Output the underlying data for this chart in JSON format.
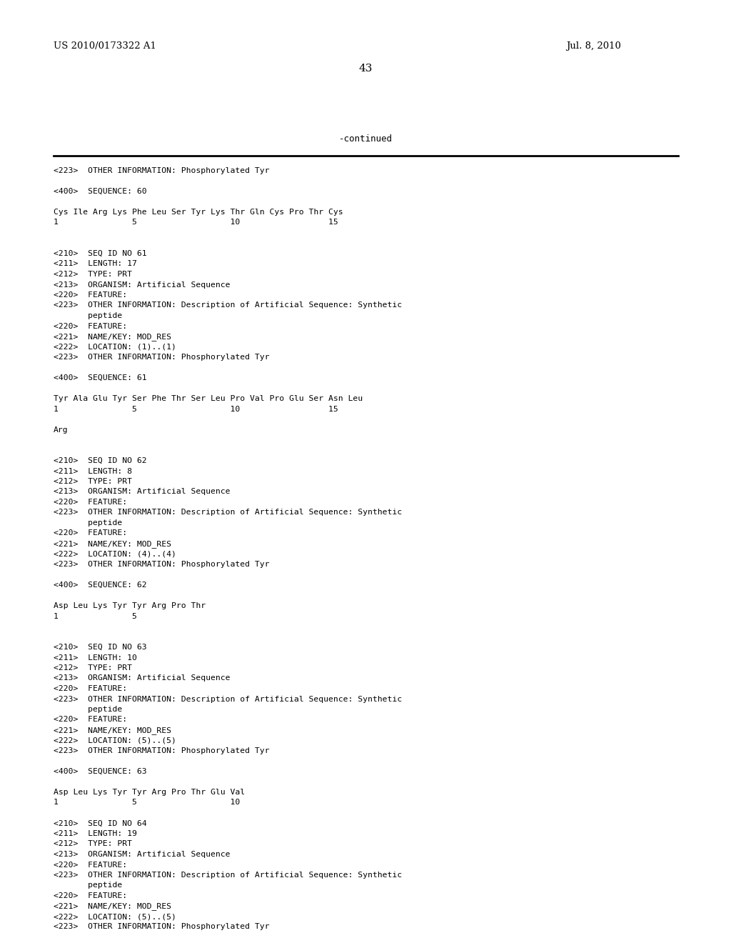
{
  "background_color": "#ffffff",
  "header_left": "US 2010/0173322 A1",
  "header_right": "Jul. 8, 2010",
  "page_number": "43",
  "continued_text": "-continued",
  "figsize": [
    10.24,
    13.2
  ],
  "dpi": 100,
  "content_lines": [
    "<223>  OTHER INFORMATION: Phosphorylated Tyr",
    "",
    "<400>  SEQUENCE: 60",
    "",
    "Cys Ile Arg Lys Phe Leu Ser Tyr Lys Thr Gln Cys Pro Thr Cys",
    "1               5                   10                  15",
    "",
    "",
    "<210>  SEQ ID NO 61",
    "<211>  LENGTH: 17",
    "<212>  TYPE: PRT",
    "<213>  ORGANISM: Artificial Sequence",
    "<220>  FEATURE:",
    "<223>  OTHER INFORMATION: Description of Artificial Sequence: Synthetic",
    "       peptide",
    "<220>  FEATURE:",
    "<221>  NAME/KEY: MOD_RES",
    "<222>  LOCATION: (1)..(1)",
    "<223>  OTHER INFORMATION: Phosphorylated Tyr",
    "",
    "<400>  SEQUENCE: 61",
    "",
    "Tyr Ala Glu Tyr Ser Phe Thr Ser Leu Pro Val Pro Glu Ser Asn Leu",
    "1               5                   10                  15",
    "",
    "Arg",
    "",
    "",
    "<210>  SEQ ID NO 62",
    "<211>  LENGTH: 8",
    "<212>  TYPE: PRT",
    "<213>  ORGANISM: Artificial Sequence",
    "<220>  FEATURE:",
    "<223>  OTHER INFORMATION: Description of Artificial Sequence: Synthetic",
    "       peptide",
    "<220>  FEATURE:",
    "<221>  NAME/KEY: MOD_RES",
    "<222>  LOCATION: (4)..(4)",
    "<223>  OTHER INFORMATION: Phosphorylated Tyr",
    "",
    "<400>  SEQUENCE: 62",
    "",
    "Asp Leu Lys Tyr Tyr Arg Pro Thr",
    "1               5",
    "",
    "",
    "<210>  SEQ ID NO 63",
    "<211>  LENGTH: 10",
    "<212>  TYPE: PRT",
    "<213>  ORGANISM: Artificial Sequence",
    "<220>  FEATURE:",
    "<223>  OTHER INFORMATION: Description of Artificial Sequence: Synthetic",
    "       peptide",
    "<220>  FEATURE:",
    "<221>  NAME/KEY: MOD_RES",
    "<222>  LOCATION: (5)..(5)",
    "<223>  OTHER INFORMATION: Phosphorylated Tyr",
    "",
    "<400>  SEQUENCE: 63",
    "",
    "Asp Leu Lys Tyr Tyr Arg Pro Thr Glu Val",
    "1               5                   10",
    "",
    "<210>  SEQ ID NO 64",
    "<211>  LENGTH: 19",
    "<212>  TYPE: PRT",
    "<213>  ORGANISM: Artificial Sequence",
    "<220>  FEATURE:",
    "<223>  OTHER INFORMATION: Description of Artificial Sequence: Synthetic",
    "       peptide",
    "<220>  FEATURE:",
    "<221>  NAME/KEY: MOD_RES",
    "<222>  LOCATION: (5)..(5)",
    "<223>  OTHER INFORMATION: Phosphorylated Tyr"
  ]
}
